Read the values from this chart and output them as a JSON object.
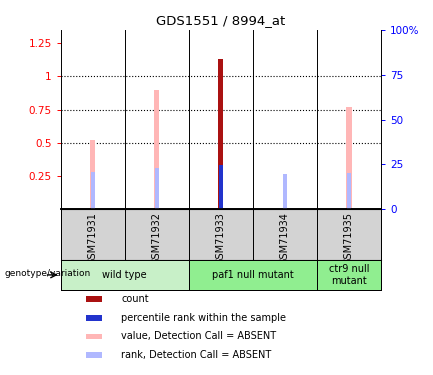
{
  "title": "GDS1551 / 8994_at",
  "samples": [
    "GSM71931",
    "GSM71932",
    "GSM71933",
    "GSM71934",
    "GSM71935"
  ],
  "value_bars": [
    0.52,
    0.9,
    0.0,
    0.0,
    0.77
  ],
  "value_bar_color": "#ffb6b6",
  "rank_bars": [
    0.28,
    0.31,
    0.0,
    0.265,
    0.275
  ],
  "rank_bar_color": "#b0b8ff",
  "count_bar_val": 1.13,
  "count_bar_idx": 2,
  "count_bar_color": "#aa1111",
  "percentile_bar_val": 0.335,
  "percentile_bar_idx": 2,
  "percentile_bar_color": "#2233cc",
  "ylim_left": [
    0.0,
    1.35
  ],
  "ylim_right": [
    0.0,
    100
  ],
  "yticks_left": [
    0.25,
    0.5,
    0.75,
    1.0,
    1.25
  ],
  "ytick_labels_left": [
    "0.25",
    "0.5",
    "0.75",
    "1",
    "1.25"
  ],
  "yticks_right": [
    0,
    25,
    50,
    75,
    100
  ],
  "ytick_labels_right": [
    "0",
    "25",
    "50",
    "75",
    "100%"
  ],
  "dotted_lines": [
    0.5,
    0.75,
    1.0
  ],
  "legend_items": [
    {
      "color": "#aa1111",
      "label": "count"
    },
    {
      "color": "#2233cc",
      "label": "percentile rank within the sample"
    },
    {
      "color": "#ffb6b6",
      "label": "value, Detection Call = ABSENT"
    },
    {
      "color": "#b0b8ff",
      "label": "rank, Detection Call = ABSENT"
    }
  ],
  "genotype_label": "genotype/variation",
  "header_color": "#d3d3d3",
  "group_box_light": "#c8f0c8",
  "group_box_medium": "#90ee90",
  "group_defs": [
    {
      "label": "wild type",
      "start": 0,
      "end": 2,
      "color": "#c8f0c8"
    },
    {
      "label": "paf1 null mutant",
      "start": 2,
      "end": 4,
      "color": "#90ee90"
    },
    {
      "label": "ctr9 null\nmutant",
      "start": 4,
      "end": 5,
      "color": "#90ee90"
    }
  ]
}
